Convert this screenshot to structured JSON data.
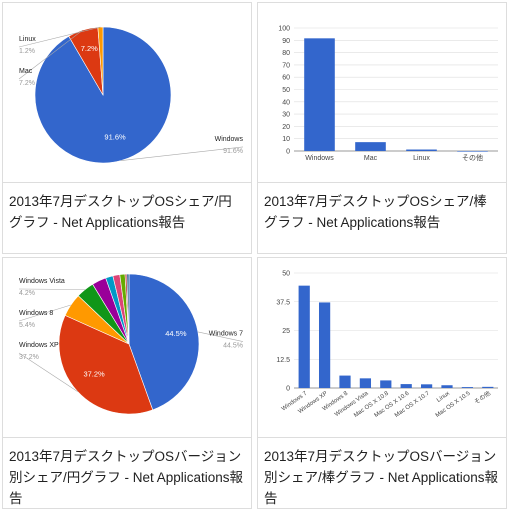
{
  "chart_data": [
    {
      "type": "pie",
      "caption": "2013年7月デスクトップOSシェア/円グラフ - Net Applications報告",
      "categories": [
        "Windows",
        "Mac",
        "Linux"
      ],
      "values": [
        91.6,
        7.2,
        1.2
      ],
      "value_labels": [
        "91.6%",
        "7.2%",
        "1.2%"
      ],
      "colors": [
        "#3366cc",
        "#dc3912",
        "#ff9900"
      ]
    },
    {
      "type": "bar",
      "caption": "2013年7月デスクトップOSシェア/棒グラフ - Net Applications報告",
      "categories": [
        "Windows",
        "Mac",
        "Linux",
        "その他"
      ],
      "values": [
        91.6,
        7.2,
        1.2,
        0
      ],
      "color": "#3366cc",
      "ylim": [
        0,
        100
      ],
      "yticks": [
        0,
        10,
        20,
        30,
        40,
        50,
        60,
        70,
        80,
        90,
        100
      ],
      "grid": true
    },
    {
      "type": "pie",
      "caption": "2013年7月デスクトップOSバージョン別シェア/円グラフ - Net Applications報告",
      "categories": [
        "Windows 7",
        "Windows XP",
        "Windows 8",
        "Windows Vista",
        null,
        null,
        null,
        null,
        null,
        null
      ],
      "values": [
        44.5,
        37.2,
        5.4,
        4.2,
        3.3,
        1.7,
        1.6,
        1.2,
        0.4,
        0.5
      ],
      "value_labels": [
        "44.5%",
        "37.2%",
        "5.4%",
        "4.2%",
        null,
        null,
        null,
        null,
        null,
        null
      ],
      "colors": [
        "#3366cc",
        "#dc3912",
        "#ff9900",
        "#109618",
        "#990099",
        "#0099c6",
        "#dd4477",
        "#66aa00",
        "#b82e2e",
        "#316395"
      ]
    },
    {
      "type": "bar",
      "caption": "2013年7月デスクトップOSバージョン別シェア/棒グラフ - Net Applications報告",
      "categories": [
        "Windows 7",
        "Windows XP",
        "Windows 8",
        "Windows Vista",
        "Mac OS X 10.8",
        "Mac OS X 10.6",
        "Mac OS X 10.7",
        "Linux",
        "Mac OS X 10.5",
        "その他"
      ],
      "values": [
        44.5,
        37.2,
        5.4,
        4.2,
        3.3,
        1.7,
        1.6,
        1.2,
        0.4,
        0.5
      ],
      "color": "#3366cc",
      "ylim": [
        0,
        50
      ],
      "yticks": [
        0,
        12.5,
        25,
        37.5,
        50
      ],
      "grid": true
    }
  ]
}
